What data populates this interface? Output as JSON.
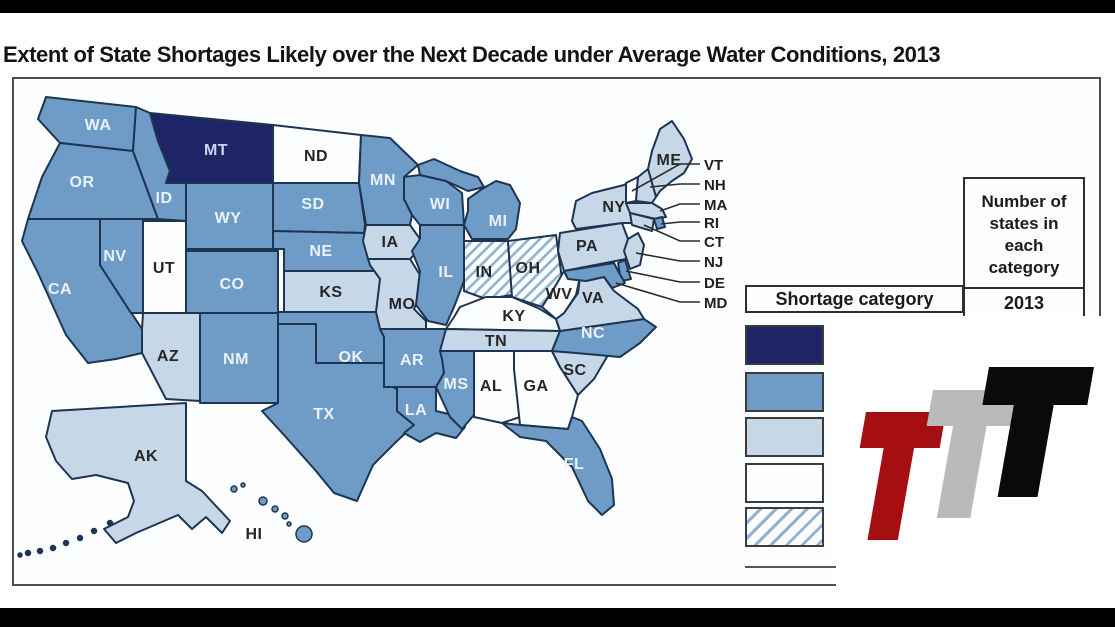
{
  "title": "Extent of State Shortages Likely over the Next Decade under Average Water Conditions, 2013",
  "legend": {
    "shortage_category_label": "Shortage category",
    "number_header": "Number of states in each category",
    "year": "2013",
    "swatches": [
      {
        "name": "category-darkest",
        "pattern": "solid",
        "color": "#1e2566"
      },
      {
        "name": "category-medium",
        "pattern": "solid",
        "color": "#6f9cc7"
      },
      {
        "name": "category-light",
        "pattern": "solid",
        "color": "#c6d7e8"
      },
      {
        "name": "category-none",
        "pattern": "solid",
        "color": "#fcfeff"
      },
      {
        "name": "category-hatched",
        "pattern": "hatch",
        "color": "#8fb3d1"
      }
    ]
  },
  "map": {
    "border_color": "#1d3552",
    "category_colors": {
      "dark": "#1e2566",
      "medium": "#6f9cc7",
      "light": "#c6d7e8",
      "white": "#fcfeff",
      "hatch": "hatch"
    },
    "states": [
      {
        "id": "WA",
        "label": "WA",
        "category": "medium",
        "tone": "light"
      },
      {
        "id": "OR",
        "label": "OR",
        "category": "medium",
        "tone": "light"
      },
      {
        "id": "CA",
        "label": "CA",
        "category": "medium",
        "tone": "light"
      },
      {
        "id": "NV",
        "label": "NV",
        "category": "medium",
        "tone": "light"
      },
      {
        "id": "ID",
        "label": "ID",
        "category": "medium",
        "tone": "light"
      },
      {
        "id": "MT",
        "label": "MT",
        "category": "dark",
        "tone": "navy"
      },
      {
        "id": "WY",
        "label": "WY",
        "category": "medium",
        "tone": "light"
      },
      {
        "id": "UT",
        "label": "UT",
        "category": "white",
        "tone": "dark"
      },
      {
        "id": "CO",
        "label": "CO",
        "category": "medium",
        "tone": "light"
      },
      {
        "id": "AZ",
        "label": "AZ",
        "category": "light",
        "tone": "dark"
      },
      {
        "id": "NM",
        "label": "NM",
        "category": "medium",
        "tone": "light"
      },
      {
        "id": "ND",
        "label": "ND",
        "category": "white",
        "tone": "dark"
      },
      {
        "id": "SD",
        "label": "SD",
        "category": "medium",
        "tone": "light"
      },
      {
        "id": "NE",
        "label": "NE",
        "category": "medium",
        "tone": "light"
      },
      {
        "id": "KS",
        "label": "KS",
        "category": "light",
        "tone": "dark"
      },
      {
        "id": "OK",
        "label": "OK",
        "category": "medium",
        "tone": "light"
      },
      {
        "id": "TX",
        "label": "TX",
        "category": "medium",
        "tone": "light"
      },
      {
        "id": "MN",
        "label": "MN",
        "category": "medium",
        "tone": "light"
      },
      {
        "id": "IA",
        "label": "IA",
        "category": "light",
        "tone": "dark"
      },
      {
        "id": "MO",
        "label": "MO",
        "category": "light",
        "tone": "dark"
      },
      {
        "id": "AR",
        "label": "AR",
        "category": "medium",
        "tone": "light"
      },
      {
        "id": "LA",
        "label": "LA",
        "category": "medium",
        "tone": "light"
      },
      {
        "id": "WI",
        "label": "WI",
        "category": "medium",
        "tone": "light"
      },
      {
        "id": "IL",
        "label": "IL",
        "category": "medium",
        "tone": "light"
      },
      {
        "id": "MS",
        "label": "MS",
        "category": "medium",
        "tone": "light"
      },
      {
        "id": "MI",
        "label": "MI",
        "category": "medium",
        "tone": "light"
      },
      {
        "id": "IN",
        "label": "IN",
        "category": "hatch",
        "tone": "dark"
      },
      {
        "id": "OH",
        "label": "OH",
        "category": "hatch",
        "tone": "dark"
      },
      {
        "id": "KY",
        "label": "KY",
        "category": "white",
        "tone": "dark"
      },
      {
        "id": "TN",
        "label": "TN",
        "category": "light",
        "tone": "dark"
      },
      {
        "id": "AL",
        "label": "AL",
        "category": "white",
        "tone": "dark"
      },
      {
        "id": "GA",
        "label": "GA",
        "category": "white",
        "tone": "dark"
      },
      {
        "id": "FL",
        "label": "FL",
        "category": "medium",
        "tone": "light"
      },
      {
        "id": "SC",
        "label": "SC",
        "category": "light",
        "tone": "dark"
      },
      {
        "id": "NC",
        "label": "NC",
        "category": "medium",
        "tone": "light"
      },
      {
        "id": "VA",
        "label": "VA",
        "category": "light",
        "tone": "dark"
      },
      {
        "id": "WV",
        "label": "WV",
        "category": "white",
        "tone": "dark"
      },
      {
        "id": "PA",
        "label": "PA",
        "category": "light",
        "tone": "dark"
      },
      {
        "id": "NY",
        "label": "NY",
        "category": "light",
        "tone": "dark"
      },
      {
        "id": "ME",
        "label": "ME",
        "category": "light",
        "tone": "dark"
      },
      {
        "id": "VT",
        "label": "",
        "category": "white",
        "tone": "dark"
      },
      {
        "id": "NH",
        "label": "",
        "category": "light",
        "tone": "dark"
      },
      {
        "id": "MA",
        "label": "",
        "category": "light",
        "tone": "dark"
      },
      {
        "id": "RI",
        "label": "",
        "category": "medium",
        "tone": "light"
      },
      {
        "id": "CT",
        "label": "",
        "category": "light",
        "tone": "dark"
      },
      {
        "id": "NJ",
        "label": "",
        "category": "light",
        "tone": "dark"
      },
      {
        "id": "DE",
        "label": "",
        "category": "medium",
        "tone": "light"
      },
      {
        "id": "MD",
        "label": "",
        "category": "medium",
        "tone": "light"
      },
      {
        "id": "AK",
        "label": "AK",
        "category": "light",
        "tone": "dark"
      },
      {
        "id": "HI",
        "label": "HI",
        "category": "medium",
        "tone": "dark"
      }
    ],
    "leader_labels": [
      {
        "id": "VT",
        "label": "VT"
      },
      {
        "id": "NH",
        "label": "NH"
      },
      {
        "id": "MA",
        "label": "MA"
      },
      {
        "id": "RI",
        "label": "RI"
      },
      {
        "id": "CT",
        "label": "CT"
      },
      {
        "id": "NJ",
        "label": "NJ"
      },
      {
        "id": "DE",
        "label": "DE"
      },
      {
        "id": "MD",
        "label": "MD"
      }
    ]
  },
  "logo": {
    "letters": [
      {
        "name": "logo-letter-red",
        "color": "#a50f14"
      },
      {
        "name": "logo-letter-gray",
        "color": "#b9babc"
      },
      {
        "name": "logo-letter-black",
        "color": "#0a0a0a"
      }
    ]
  }
}
